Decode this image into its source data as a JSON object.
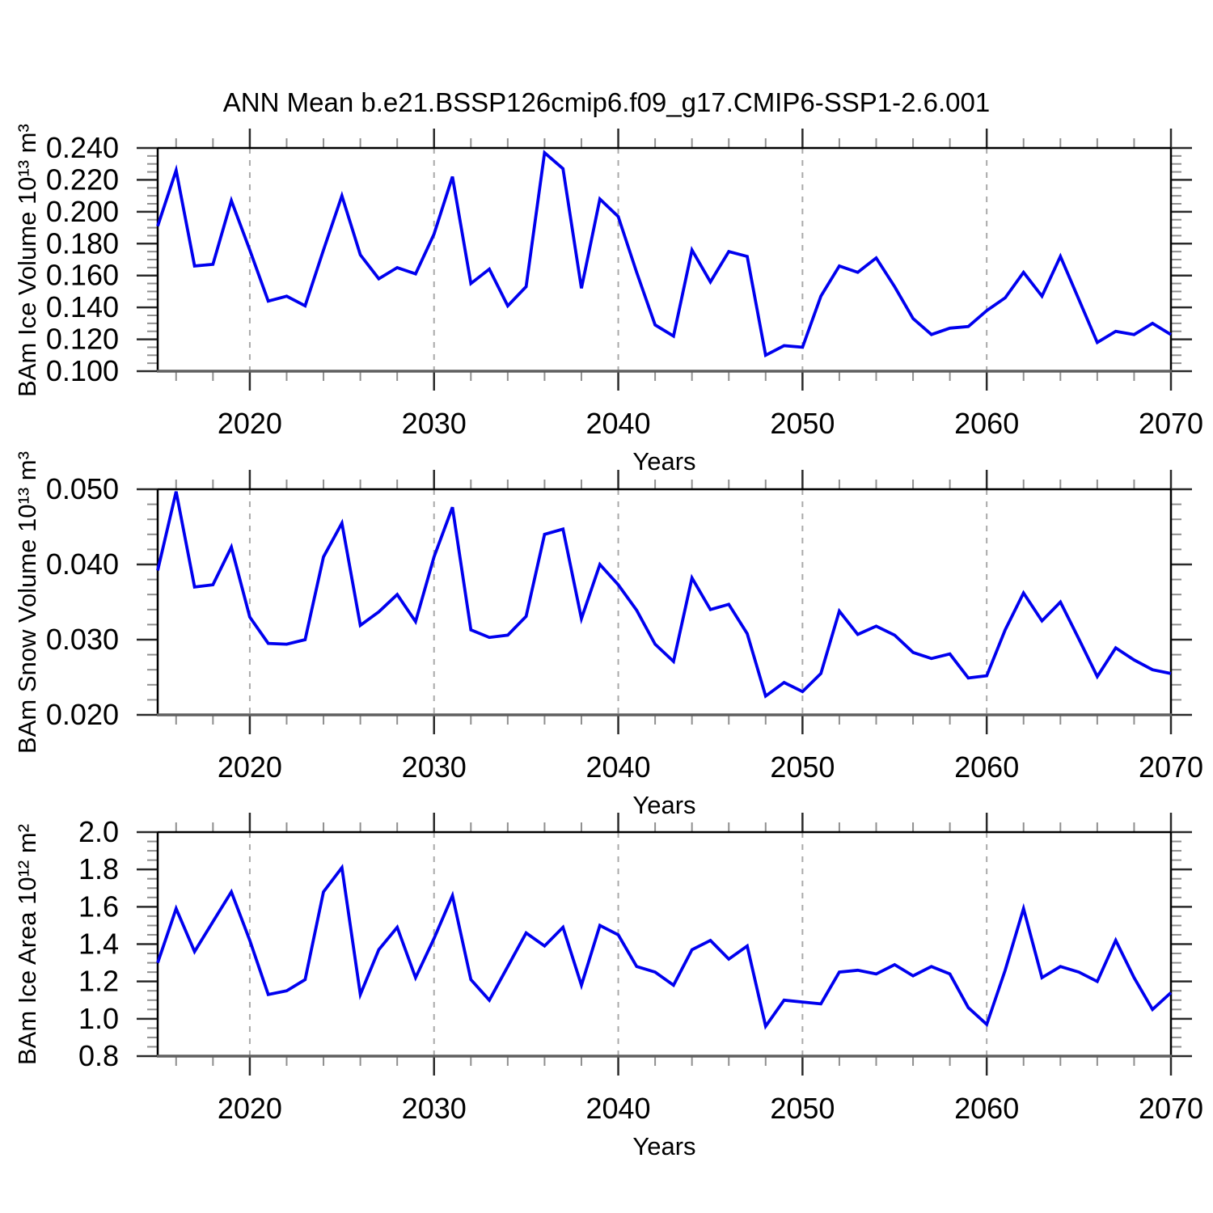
{
  "title": "ANN Mean b.e21.BSSP126cmip6.f09_g17.CMIP6-SSP1-2.6.001",
  "styles": {
    "line_color": "#0000ee",
    "grid_color": "#a9a9a9",
    "frame_color": "#000000",
    "bottom_axis_color": "#5f5f5f",
    "tick_major_color": "#2a2a2a",
    "tick_minor_color": "#8f8f8f"
  },
  "years": [
    2015,
    2016,
    2017,
    2018,
    2019,
    2020,
    2021,
    2022,
    2023,
    2024,
    2025,
    2026,
    2027,
    2028,
    2029,
    2030,
    2031,
    2032,
    2033,
    2034,
    2035,
    2036,
    2037,
    2038,
    2039,
    2040,
    2041,
    2042,
    2043,
    2044,
    2045,
    2046,
    2047,
    2048,
    2049,
    2050,
    2051,
    2052,
    2053,
    2054,
    2055,
    2056,
    2057,
    2058,
    2059,
    2060,
    2061,
    2062,
    2063,
    2064,
    2065,
    2066,
    2067,
    2068,
    2069,
    2070
  ],
  "chart_data": [
    {
      "type": "line",
      "name": "ice-volume",
      "title": "",
      "ylabel": "BAm Ice Volume 10¹³ m³",
      "xlabel": "Years",
      "xlim": [
        2015,
        2070
      ],
      "ylim": [
        0.1,
        0.24
      ],
      "ytick_values": [
        0.1,
        0.12,
        0.14,
        0.16,
        0.18,
        0.2,
        0.22,
        0.24
      ],
      "ytick_labels": [
        "0.100",
        "0.120",
        "0.140",
        "0.160",
        "0.180",
        "0.200",
        "0.220",
        "0.240"
      ],
      "y_minor_step": 0.005,
      "xtick_values": [
        2020,
        2030,
        2040,
        2050,
        2060,
        2070
      ],
      "xtick_labels": [
        "2020",
        "2030",
        "2040",
        "2050",
        "2060",
        "2070"
      ],
      "x_minor_step": 2,
      "grid_years": [
        2020,
        2030,
        2040,
        2050,
        2060
      ],
      "values": [
        0.191,
        0.226,
        0.166,
        0.167,
        0.207,
        0.176,
        0.144,
        0.147,
        0.141,
        0.176,
        0.21,
        0.173,
        0.158,
        0.165,
        0.161,
        0.186,
        0.222,
        0.155,
        0.164,
        0.141,
        0.153,
        0.237,
        0.227,
        0.152,
        0.208,
        0.197,
        0.162,
        0.129,
        0.122,
        0.176,
        0.156,
        0.175,
        0.172,
        0.11,
        0.116,
        0.115,
        0.147,
        0.166,
        0.162,
        0.171,
        0.153,
        0.133,
        0.123,
        0.127,
        0.128,
        0.138,
        0.146,
        0.162,
        0.147,
        0.172,
        0.145,
        0.118,
        0.125,
        0.123,
        0.13,
        0.123
      ]
    },
    {
      "type": "line",
      "name": "snow-volume",
      "title": "",
      "ylabel": "BAm Snow Volume 10¹³ m³",
      "xlabel": "Years",
      "xlim": [
        2015,
        2070
      ],
      "ylim": [
        0.02,
        0.05
      ],
      "ytick_values": [
        0.02,
        0.03,
        0.04,
        0.05
      ],
      "ytick_labels": [
        "0.020",
        "0.030",
        "0.040",
        "0.050"
      ],
      "y_minor_step": 0.002,
      "xtick_values": [
        2020,
        2030,
        2040,
        2050,
        2060,
        2070
      ],
      "xtick_labels": [
        "2020",
        "2030",
        "2040",
        "2050",
        "2060",
        "2070"
      ],
      "x_minor_step": 2,
      "grid_years": [
        2020,
        2030,
        2040,
        2050,
        2060
      ],
      "values": [
        0.0392,
        0.0497,
        0.037,
        0.0373,
        0.0423,
        0.033,
        0.0295,
        0.0294,
        0.03,
        0.041,
        0.0455,
        0.0319,
        0.0337,
        0.036,
        0.0324,
        0.041,
        0.0476,
        0.0313,
        0.0303,
        0.0306,
        0.0331,
        0.044,
        0.0447,
        0.0328,
        0.04,
        0.0373,
        0.0339,
        0.0294,
        0.0271,
        0.0382,
        0.034,
        0.0347,
        0.0308,
        0.0225,
        0.0243,
        0.0231,
        0.0255,
        0.0338,
        0.0307,
        0.0318,
        0.0306,
        0.0283,
        0.0275,
        0.0281,
        0.0249,
        0.0252,
        0.0313,
        0.0362,
        0.0325,
        0.035,
        0.0301,
        0.0251,
        0.0289,
        0.0273,
        0.026,
        0.0255
      ]
    },
    {
      "type": "line",
      "name": "ice-area",
      "title": "",
      "ylabel": "BAm Ice Area 10¹² m²",
      "xlabel": "Years",
      "xlim": [
        2015,
        2070
      ],
      "ylim": [
        0.8,
        2.0
      ],
      "ytick_values": [
        0.8,
        1.0,
        1.2,
        1.4,
        1.6,
        1.8,
        2.0
      ],
      "ytick_labels": [
        "0.8",
        "1.0",
        "1.2",
        "1.4",
        "1.6",
        "1.8",
        "2.0"
      ],
      "y_minor_step": 0.05,
      "xtick_values": [
        2020,
        2030,
        2040,
        2050,
        2060,
        2070
      ],
      "xtick_labels": [
        "2020",
        "2030",
        "2040",
        "2050",
        "2060",
        "2070"
      ],
      "x_minor_step": 2,
      "grid_years": [
        2020,
        2030,
        2040,
        2050,
        2060
      ],
      "values": [
        1.3,
        1.59,
        1.36,
        1.52,
        1.68,
        1.42,
        1.13,
        1.15,
        1.21,
        1.68,
        1.81,
        1.13,
        1.37,
        1.49,
        1.22,
        1.43,
        1.66,
        1.21,
        1.1,
        1.28,
        1.46,
        1.39,
        1.49,
        1.18,
        1.5,
        1.45,
        1.28,
        1.25,
        1.18,
        1.37,
        1.42,
        1.32,
        1.39,
        0.96,
        1.1,
        1.09,
        1.08,
        1.25,
        1.26,
        1.24,
        1.29,
        1.23,
        1.28,
        1.24,
        1.06,
        0.97,
        1.26,
        1.59,
        1.22,
        1.28,
        1.25,
        1.2,
        1.42,
        1.22,
        1.05,
        1.14
      ]
    }
  ]
}
